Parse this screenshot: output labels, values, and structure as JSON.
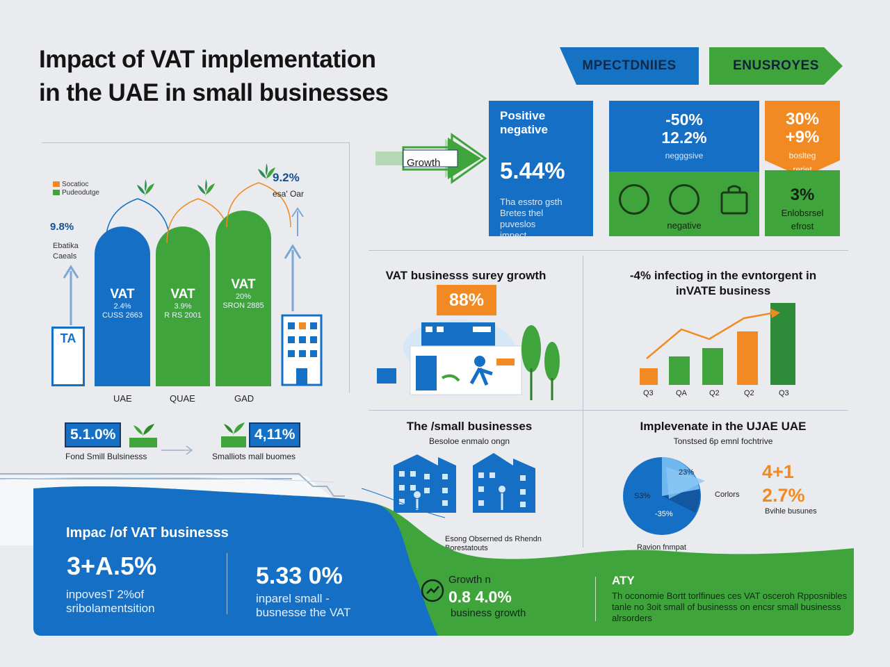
{
  "title": {
    "line1": "Impact of VAT implementation",
    "line2": "in the UAE in small businesses"
  },
  "tags": {
    "blue": "MPECTDNIIES",
    "green": "ENUSROYES"
  },
  "growth_arrow": {
    "label": "Growth"
  },
  "panel_positive": {
    "line1": "Positive",
    "line2": "negative",
    "big": "5.44%",
    "text_lines": [
      "Tha esstro gsth",
      "Bretes thel",
      "puveslos",
      "impect"
    ]
  },
  "panel_mid": {
    "line1": "-50%",
    "line2": "12.2%",
    "sub": "negggsive",
    "green_label": "negative"
  },
  "panel_orange": {
    "line1": "30%",
    "line2": "+9%",
    "sub1": "boslteg",
    "sub2": "reriet",
    "big": "3%",
    "green_sub1": "Enlobsrsel",
    "green_sub2": "efrost"
  },
  "left_chart": {
    "legend": [
      "Socatioc",
      "Pudeodutge"
    ],
    "side_pct": "9.8%",
    "side_text": [
      "Ebatika",
      "Caeals"
    ],
    "pillars": [
      {
        "title": "VAT",
        "sub1": "2.4%",
        "sub2": "CUSS 2663",
        "value": 100,
        "color": "#1570c5"
      },
      {
        "title": "VAT",
        "sub1": "3.9%",
        "sub2": "R RS 2001",
        "value": 100,
        "color": "#40a43c"
      },
      {
        "title": "VAT",
        "sub1": "20%",
        "sub2": "SRON 2885",
        "value": 110,
        "color": "#40a43c"
      }
    ],
    "categories": [
      "UAE",
      "QUAE",
      "GAD"
    ],
    "right_pct": "9.2%",
    "right_sub": "esa'    Oar",
    "building_label": "TA",
    "box1": "5.1.0%",
    "box2": "4,11%",
    "foot1": "Fond Smill Bulsinesss",
    "foot2": "Smalliots mall buomes"
  },
  "survey": {
    "title": "VAT businesss surey growth",
    "badge": "88%"
  },
  "infection": {
    "title1": "-4% infectiog in the evntorgent in",
    "title2": "inVATE business",
    "quarters": [
      "Q3",
      "QA",
      "Q2",
      "Q2",
      "Q3"
    ],
    "bar_values": [
      20,
      35,
      45,
      65,
      100
    ]
  },
  "small_biz": {
    "title": "The /small businesses",
    "sub": "Besoloe enmalo ongn",
    "note1": "Esong Obserned ds Rhendn",
    "note2": "Borestatouts"
  },
  "implement": {
    "title": "Implevenate in the UJAE UAE",
    "sub": "Tonstsed 6p emnl fochtrive",
    "pie_labels": [
      "S3%",
      "23%",
      "-35%"
    ],
    "legend_right": "Corlors",
    "big1": "4+1",
    "big2": "2.7%",
    "caption": "Bvihle busunes",
    "bottom_caption": "Ravion fnmpat"
  },
  "bottom": {
    "title": "Impac /of VAT businesss",
    "big1": "3+A.5%",
    "sub1_line1": "inpovesT 2%of",
    "sub1_line2": "sribolamentsition",
    "big2": "5.33 0%",
    "sub2_line1": "inparel small -",
    "sub2_line2": "busnesse the VAT",
    "growth_label": "Growth n",
    "growth_big": "0.8 4.0%",
    "growth_sub": "business growth",
    "aty_title": "ATY",
    "aty_text": "Th oconomie Bortt torlfinues ces VAT osceroh Rpposnibles tanle no 3oit small of businesss on encsr small businesss alrsorders"
  },
  "colors": {
    "blue": "#1570c5",
    "green": "#40a43c",
    "orange": "#f18a22",
    "background": "#e9ebee"
  }
}
